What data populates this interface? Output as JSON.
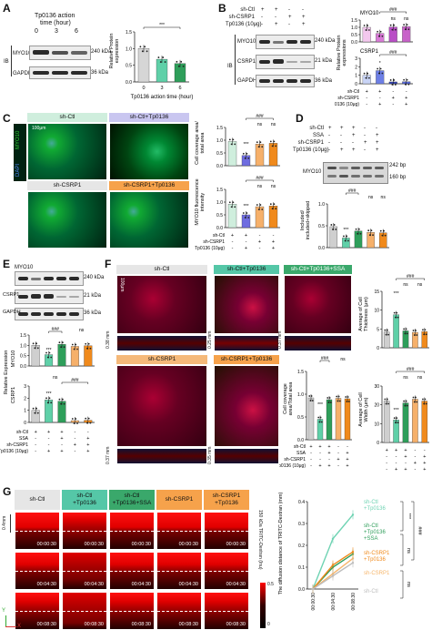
{
  "panels": {
    "A": "A",
    "B": "B",
    "C": "C",
    "D": "D",
    "E": "E",
    "F": "F",
    "G": "G"
  },
  "A": {
    "title_lines": [
      "Tp0136 action",
      "time (hour)"
    ],
    "times": [
      "0",
      "3",
      "6"
    ],
    "ib": "IB",
    "bands": [
      {
        "name": "MYO10",
        "kda": "240 kDa"
      },
      {
        "name": "GAPDH",
        "kda": "36 kDa"
      }
    ],
    "ylabel_lines": [
      "Relative Protein",
      "expression"
    ],
    "xlabel": "Tp0136 action time (hour)",
    "sig": "***",
    "chart_data": {
      "type": "bar",
      "categories": [
        "0",
        "3",
        "6"
      ],
      "values": [
        1.0,
        0.68,
        0.55
      ],
      "ylim": [
        0,
        1.5
      ],
      "yticks": [
        "0.0",
        "0.5",
        "1.0",
        "1.5"
      ]
    }
  },
  "B": {
    "rows": [
      {
        "label": "sh-Ctl",
        "marks": [
          "+",
          "+",
          "-",
          "-"
        ]
      },
      {
        "label": "sh-CSRP1",
        "marks": [
          "-",
          "-",
          "+",
          "+"
        ]
      },
      {
        "label": "Tp0136 (10μg)",
        "marks": [
          "-",
          "+",
          "-",
          "+"
        ]
      }
    ],
    "ib": "IB",
    "bands": [
      {
        "name": "MYO10",
        "kda": "240 kDa"
      },
      {
        "name": "CSRP1",
        "kda": "21 kDa"
      },
      {
        "name": "GAPDH",
        "kda": "36 kDa"
      }
    ],
    "ylabel_lines": [
      "Relative Protein",
      "expressions"
    ],
    "chart_top": {
      "title": "MYO10",
      "sig": "###",
      "ns": [
        "ns",
        "ns"
      ],
      "values": [
        1.0,
        0.58,
        1.02,
        1.05
      ],
      "yticks": [
        "0.0",
        "0.5",
        "1.0",
        "1.5"
      ]
    },
    "chart_bottom": {
      "title": "CSRP1",
      "sig": "###",
      "star": "*",
      "values": [
        1.0,
        1.55,
        0.22,
        0.24
      ],
      "yticks": [
        "0",
        "1",
        "2",
        "3"
      ]
    },
    "xrows": [
      {
        "label": "sh-Ctl",
        "marks": [
          "+",
          "+",
          "-",
          "-"
        ]
      },
      {
        "label": "sh-CSRP1",
        "marks": [
          "-",
          "-",
          "+",
          "+"
        ]
      },
      {
        "label": "Tp0136 (10μg)",
        "marks": [
          "-",
          "+",
          "-",
          "+"
        ]
      }
    ]
  },
  "C": {
    "titles": [
      "sh-Ctl",
      "sh-Ctl+Tp0136",
      "sh-CSRP1",
      "sh-CSRP1+Tp0136"
    ],
    "side_labels": [
      "MYO10",
      "DAPI"
    ],
    "scale": "100μm",
    "chart_top": {
      "ylabel_lines": [
        "Cell coverage area/",
        "total area"
      ],
      "sig": "###",
      "ns": [
        "ns",
        "ns"
      ],
      "star": "***",
      "values": [
        0.95,
        0.4,
        0.85,
        0.88
      ],
      "yticks": [
        "0.0",
        "0.5",
        "1.0",
        "1.5"
      ]
    },
    "chart_bottom": {
      "ylabel_lines": [
        "MYO10 fluorescence",
        "intensity"
      ],
      "sig": "###",
      "ns": [
        "ns",
        "ns"
      ],
      "star": "***",
      "values": [
        0.92,
        0.5,
        0.82,
        0.85
      ],
      "yticks": [
        "0.0",
        "0.5",
        "1.0",
        "1.5"
      ]
    },
    "xrows": [
      {
        "label": "sh-Ctl",
        "marks": [
          "+",
          "+",
          "-",
          "-"
        ]
      },
      {
        "label": "sh-CSRP1",
        "marks": [
          "-",
          "-",
          "+",
          "+"
        ]
      },
      {
        "label": "Tp0136 (10μg)",
        "marks": [
          "-",
          "+",
          "-",
          "+"
        ]
      }
    ]
  },
  "D": {
    "rows": [
      {
        "label": "sh-Ctl",
        "marks": [
          "+",
          "+",
          "+",
          "-",
          "-"
        ]
      },
      {
        "label": "SSA",
        "marks": [
          "-",
          "-",
          "+",
          "-",
          "+"
        ]
      },
      {
        "label": "sh-CSRP1",
        "marks": [
          "-",
          "-",
          "-",
          "+",
          "+"
        ]
      },
      {
        "label": "Tp0136 (10μg)",
        "marks": [
          "-",
          "+",
          "+",
          "-",
          "+"
        ]
      }
    ],
    "gel_label": "MYO10",
    "bp": [
      "242 bp",
      "160 bp"
    ],
    "ylabel_lines": [
      "Included/",
      "included+skipped"
    ],
    "sig": "###",
    "ns": [
      "ns",
      "ns"
    ],
    "star": "***",
    "values": [
      0.48,
      0.22,
      0.38,
      0.35,
      0.34
    ],
    "yticks": [
      "0.0",
      "0.5",
      "1.0"
    ]
  },
  "E": {
    "bands": [
      {
        "name": "MYO10",
        "kda": "240 kDa"
      },
      {
        "name": "CSRP1",
        "kda": "21 kDa"
      },
      {
        "name": "GAPDH",
        "kda": "36 kDa"
      }
    ],
    "ylabel_lines": [
      "Relative Expression"
    ],
    "top_label": "MYO10",
    "bottom_label": "CSRP1",
    "chart_top": {
      "sig": "###",
      "ns": "ns",
      "star": "***",
      "values": [
        1.0,
        0.55,
        1.05,
        0.95,
        0.98
      ],
      "yticks": [
        "0.0",
        "0.5",
        "1.0",
        "1.5"
      ]
    },
    "chart_bottom": {
      "sig": "###",
      "ns": "ns",
      "star": "***",
      "values": [
        1.0,
        1.85,
        1.75,
        0.15,
        0.18
      ],
      "yticks": [
        "0",
        "1",
        "2",
        "3"
      ]
    },
    "xrows": [
      {
        "label": "sh-Ctl",
        "marks": [
          "+",
          "+",
          "+",
          "-",
          "-"
        ]
      },
      {
        "label": "SSA",
        "marks": [
          "-",
          "-",
          "+",
          "-",
          "+"
        ]
      },
      {
        "label": "sh-CSRP1",
        "marks": [
          "-",
          "-",
          "-",
          "+",
          "+"
        ]
      },
      {
        "label": "Tp0136 (10μg)",
        "marks": [
          "-",
          "+",
          "+",
          "-",
          "+"
        ]
      }
    ]
  },
  "F": {
    "titles_top": [
      "sh-Ctl",
      "sh-Ctl+Tp0136",
      "sh-Ctl+Tp0136+SSA"
    ],
    "titles_bottom": [
      "sh-CSRP1",
      "sh-CSRP1+Tp0136"
    ],
    "scale": "100μm",
    "depths_top": [
      "0.38 mm",
      "0.25 mm",
      "0.37 mm"
    ],
    "depths_bottom": [
      "0.37 mm",
      "0.35 mm"
    ],
    "chart_thick": {
      "ylabel_lines": [
        "Average of Cell",
        "Thickness (μm)"
      ],
      "sig": "###",
      "ns": [
        "ns",
        "ns"
      ],
      "star": "***",
      "values": [
        4.2,
        8.8,
        4.5,
        4.1,
        4.3
      ],
      "yticks": [
        "0",
        "5",
        "10",
        "15"
      ]
    },
    "chart_cov": {
      "ylabel_lines": [
        "Cell coverage",
        "area/Total area"
      ],
      "sig": "###",
      "ns": "ns",
      "star": "***",
      "values": [
        0.92,
        0.45,
        0.88,
        0.91,
        0.9
      ],
      "yticks": [
        "0.0",
        "0.5",
        "1.0",
        "1.5"
      ]
    },
    "chart_width": {
      "ylabel_lines": [
        "Average of Cell",
        "Width (μm)"
      ],
      "sig": "###",
      "ns": [
        "ns",
        "ns"
      ],
      "star": "***",
      "values": [
        22,
        12,
        21,
        23,
        22
      ],
      "yticks": [
        "0",
        "10",
        "20",
        "30"
      ]
    },
    "xrows": [
      {
        "label": "sh-Ctl",
        "marks": [
          "+",
          "+",
          "+",
          "-",
          "-"
        ]
      },
      {
        "label": "SSA",
        "marks": [
          "-",
          "-",
          "+",
          "-",
          "+"
        ]
      },
      {
        "label": "sh-CSRP1",
        "marks": [
          "-",
          "-",
          "-",
          "+",
          "+"
        ]
      },
      {
        "label": "Tp0136 (10μg)",
        "marks": [
          "-",
          "+",
          "+",
          "-",
          "+"
        ]
      }
    ]
  },
  "G": {
    "titles": [
      "sh-Ctl",
      "sh-Ctl\n+Tp0136",
      "sh-Ctl\n+Tp0136+SSA",
      "sh-CSRP1",
      "sh-CSRP1\n+Tp0136"
    ],
    "times": [
      "00:00:30",
      "00:04:30",
      "00:08:30"
    ],
    "scale": "0.4mm",
    "colorbar_label": "150 kDa TRITC-Dextran (Inu)",
    "colorbar_ticks": [
      "0.5",
      "0"
    ],
    "ylabel": "The diffusion distance of TRITC-Dextran (mm)",
    "axis_x": "X",
    "axis_y": "Y",
    "chart_data": {
      "type": "line",
      "x": [
        "00:00:30",
        "00:04:30",
        "00:08:30"
      ],
      "ylim": [
        0.0,
        0.4
      ],
      "yticks": [
        "0.0",
        "0.1",
        "0.2",
        "0.3",
        "0.4"
      ],
      "series": [
        {
          "name": "sh-Ctl\n+Tp0136",
          "color": "#6fd3b3",
          "values": [
            0.0,
            0.23,
            0.34
          ]
        },
        {
          "name": "sh-Ctl\n+Tp0136\n+SSA",
          "color": "#2e9e5a",
          "values": [
            0.0,
            0.1,
            0.16
          ]
        },
        {
          "name": "sh-CSRP1\n+Tp0136",
          "color": "#f08a1c",
          "values": [
            0.0,
            0.11,
            0.17
          ]
        },
        {
          "name": "sh-CSRP1",
          "color": "#f6b56a",
          "values": [
            0.0,
            0.07,
            0.14
          ]
        },
        {
          "name": "sh-Ctl",
          "color": "#bdbdbd",
          "values": [
            0.0,
            0.06,
            0.12
          ]
        }
      ],
      "sig": [
        "***",
        "###",
        "ns",
        "ns"
      ]
    }
  }
}
